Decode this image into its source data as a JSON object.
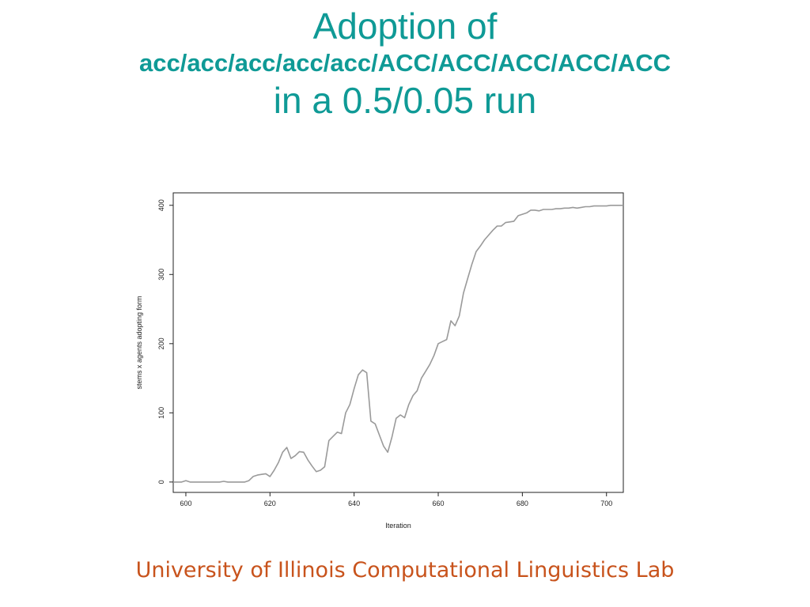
{
  "slide": {
    "title_line1": "Adoption of",
    "title_line2": "acc/acc/acc/acc/acc/ACC/ACC/ACC/ACC/ACC",
    "title_line3": "in a 0.5/0.05 run",
    "footer": "University of Illinois Computational Linguistics Lab",
    "title_color": "#0f9a96",
    "footer_color": "#c8531c"
  },
  "chart_data": {
    "type": "line",
    "xlabel": "Iteration",
    "ylabel": "stems x agents adopting form",
    "xlim": [
      597,
      704
    ],
    "ylim": [
      -15,
      418
    ],
    "xticks": [
      600,
      620,
      640,
      660,
      680,
      700
    ],
    "yticks": [
      0,
      100,
      200,
      300,
      400
    ],
    "grid": false,
    "line_color": "#9a9a9a",
    "series": [
      {
        "x": [
          597,
          598,
          599,
          600,
          601,
          602,
          603,
          604,
          605,
          606,
          607,
          608,
          609,
          610,
          611,
          612,
          613,
          614,
          615,
          616,
          617,
          618,
          619,
          620,
          621,
          622,
          623,
          624,
          625,
          626,
          627,
          628,
          629,
          630,
          631,
          632,
          633,
          634,
          635,
          636,
          637,
          638,
          639,
          640,
          641,
          642,
          643,
          644,
          645,
          646,
          647,
          648,
          649,
          650,
          651,
          652,
          653,
          654,
          655,
          656,
          657,
          658,
          659,
          660,
          661,
          662,
          663,
          664,
          665,
          666,
          667,
          668,
          669,
          670,
          671,
          672,
          673,
          674,
          675,
          676,
          677,
          678,
          679,
          680,
          681,
          682,
          683,
          684,
          685,
          686,
          687,
          688,
          689,
          690,
          691,
          692,
          693,
          694,
          695,
          696,
          697,
          698,
          699,
          700,
          701,
          702,
          703,
          704
        ],
        "y": [
          0,
          0,
          0,
          2,
          0,
          0,
          0,
          0,
          0,
          0,
          0,
          0,
          1,
          0,
          0,
          0,
          0,
          0,
          2,
          8,
          10,
          11,
          12,
          8,
          17,
          28,
          43,
          50,
          34,
          38,
          44,
          43,
          32,
          23,
          15,
          17,
          22,
          60,
          66,
          72,
          70,
          100,
          112,
          135,
          155,
          162,
          158,
          88,
          84,
          68,
          52,
          43,
          65,
          92,
          97,
          93,
          112,
          125,
          132,
          150,
          160,
          170,
          183,
          200,
          203,
          206,
          233,
          226,
          240,
          273,
          294,
          315,
          333,
          341,
          350,
          357,
          364,
          370,
          370,
          375,
          376,
          377,
          385,
          387,
          389,
          393,
          393,
          392,
          394,
          394,
          394,
          395,
          395,
          396,
          396,
          397,
          396,
          397,
          398,
          398,
          399,
          399,
          399,
          399,
          400,
          400,
          400,
          400
        ]
      }
    ]
  }
}
